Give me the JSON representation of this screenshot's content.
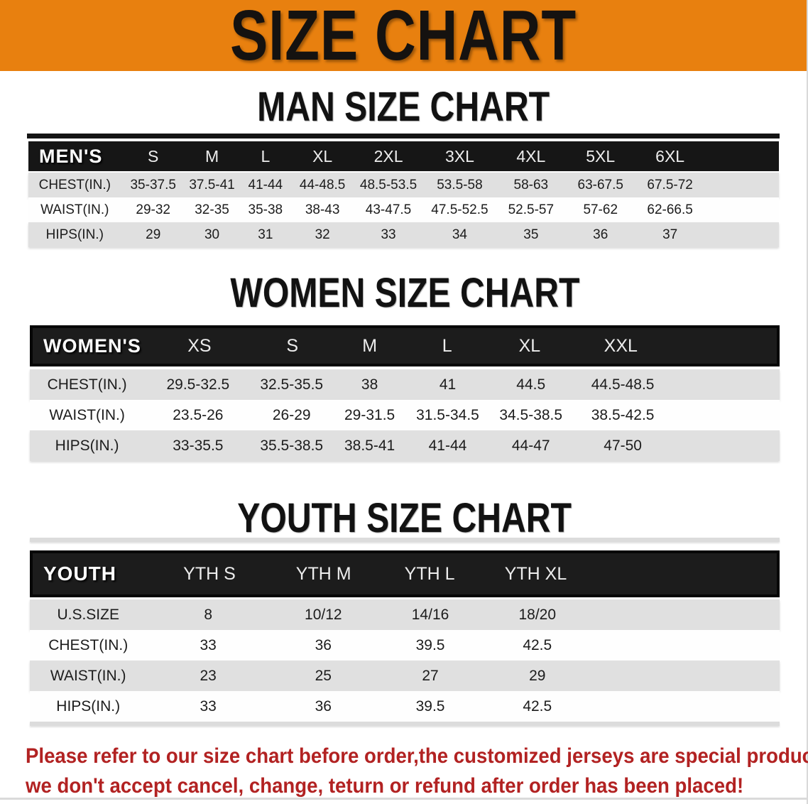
{
  "banner": {
    "title": "SIZE CHART",
    "bg_color": "#E8800F"
  },
  "sections": {
    "man": {
      "title": "MAN SIZE CHART"
    },
    "women": {
      "title": "WOMEN SIZE CHART"
    },
    "youth": {
      "title": "YOUTH SIZE CHART"
    }
  },
  "men_table": {
    "header": [
      "MEN'S",
      "S",
      "M",
      "L",
      "XL",
      "2XL",
      "3XL",
      "4XL",
      "5XL",
      "6XL"
    ],
    "rows": [
      {
        "label": "CHEST(IN.)",
        "values": [
          "35-37.5",
          "37.5-41",
          "41-44",
          "44-48.5",
          "48.5-53.5",
          "53.5-58",
          "58-63",
          "63-67.5",
          "67.5-72"
        ]
      },
      {
        "label": "WAIST(IN.)",
        "values": [
          "29-32",
          "32-35",
          "35-38",
          "38-43",
          "43-47.5",
          "47.5-52.5",
          "52.5-57",
          "57-62",
          "62-66.5"
        ]
      },
      {
        "label": "HIPS(IN.)",
        "values": [
          "29",
          "30",
          "31",
          "32",
          "33",
          "34",
          "35",
          "36",
          "37"
        ]
      }
    ]
  },
  "women_table": {
    "header": [
      "WOMEN'S",
      "XS",
      "S",
      "M",
      "L",
      "XL",
      "XXL"
    ],
    "rows": [
      {
        "label": "CHEST(IN.)",
        "values": [
          "29.5-32.5",
          "32.5-35.5",
          "38",
          "41",
          "44.5",
          "44.5-48.5"
        ]
      },
      {
        "label": "WAIST(IN.)",
        "values": [
          "23.5-26",
          "26-29",
          "29-31.5",
          "31.5-34.5",
          "34.5-38.5",
          "38.5-42.5"
        ]
      },
      {
        "label": "HIPS(IN.)",
        "values": [
          "33-35.5",
          "35.5-38.5",
          "38.5-41",
          "41-44",
          "44-47",
          "47-50"
        ]
      }
    ]
  },
  "youth_table": {
    "header": [
      "YOUTH",
      "YTH S",
      "YTH M",
      "YTH L",
      "YTH XL"
    ],
    "rows": [
      {
        "label": "U.S.SIZE",
        "values": [
          "8",
          "10/12",
          "14/16",
          "18/20"
        ]
      },
      {
        "label": "CHEST(IN.)",
        "values": [
          "33",
          "36",
          "39.5",
          "42.5"
        ]
      },
      {
        "label": "WAIST(IN.)",
        "values": [
          "23",
          "25",
          "27",
          "29"
        ]
      },
      {
        "label": "HIPS(IN.)",
        "values": [
          "33",
          "36",
          "39.5",
          "42.5"
        ]
      }
    ]
  },
  "footer": {
    "line1": "Please refer to our size chart before order,the customized jerseys are special products,",
    "line2": "we don't accept cancel, change, teturn or refund after order has been placed!",
    "color": "#B22222"
  }
}
